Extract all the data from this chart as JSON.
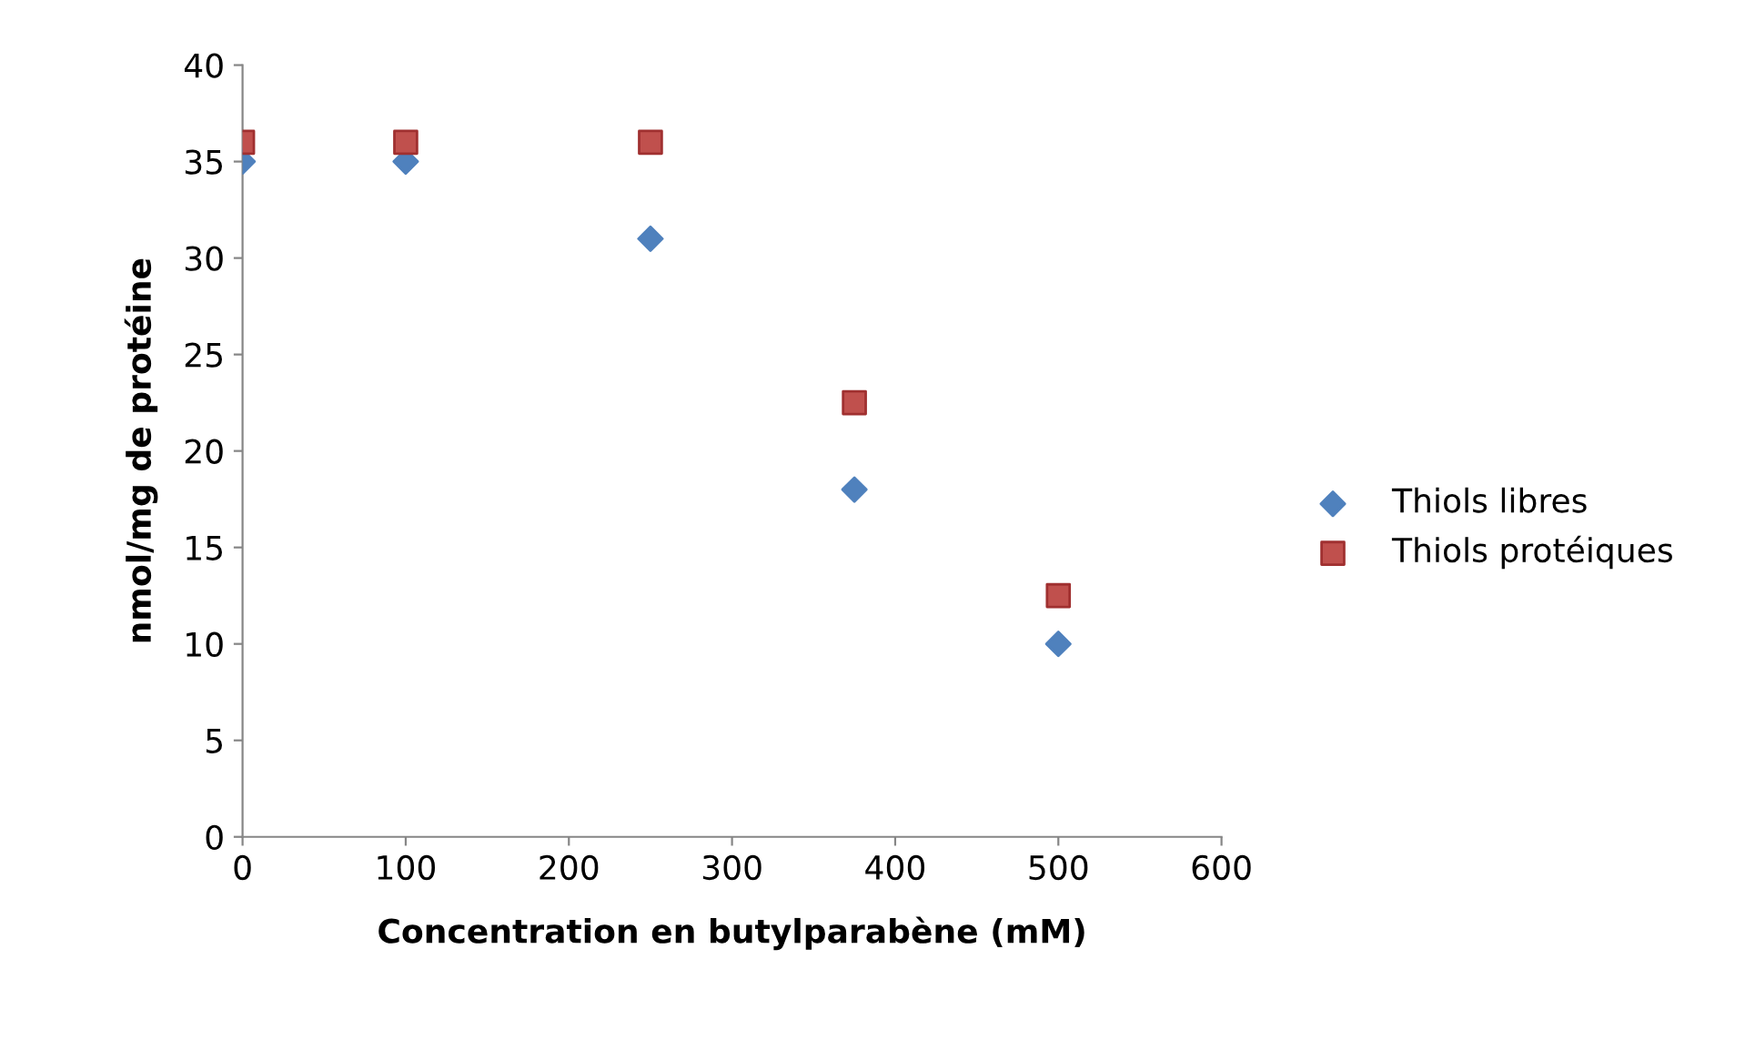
{
  "chart_data": {
    "type": "scatter",
    "xlabel": "Concentration en butylparabène (mM)",
    "ylabel": "nmol/mg de protéine",
    "xlim": [
      0,
      600
    ],
    "xticks": [
      0,
      100,
      200,
      300,
      400,
      500,
      600
    ],
    "ylim": [
      0,
      40
    ],
    "yticks": [
      0,
      5,
      10,
      15,
      20,
      25,
      30,
      35,
      40
    ],
    "grid": false,
    "legend": "right",
    "series": [
      {
        "name": "Thiols libres",
        "color": "#4f81bd",
        "marker": "diamond",
        "x": [
          0,
          100,
          250,
          375,
          500
        ],
        "values": [
          35,
          35,
          31,
          18,
          10
        ]
      },
      {
        "name": "Thiols protéiques",
        "color": "#c0504d",
        "marker": "square",
        "x": [
          0,
          100,
          250,
          375,
          500
        ],
        "values": [
          36,
          36,
          36,
          22.5,
          12.5
        ]
      }
    ]
  }
}
